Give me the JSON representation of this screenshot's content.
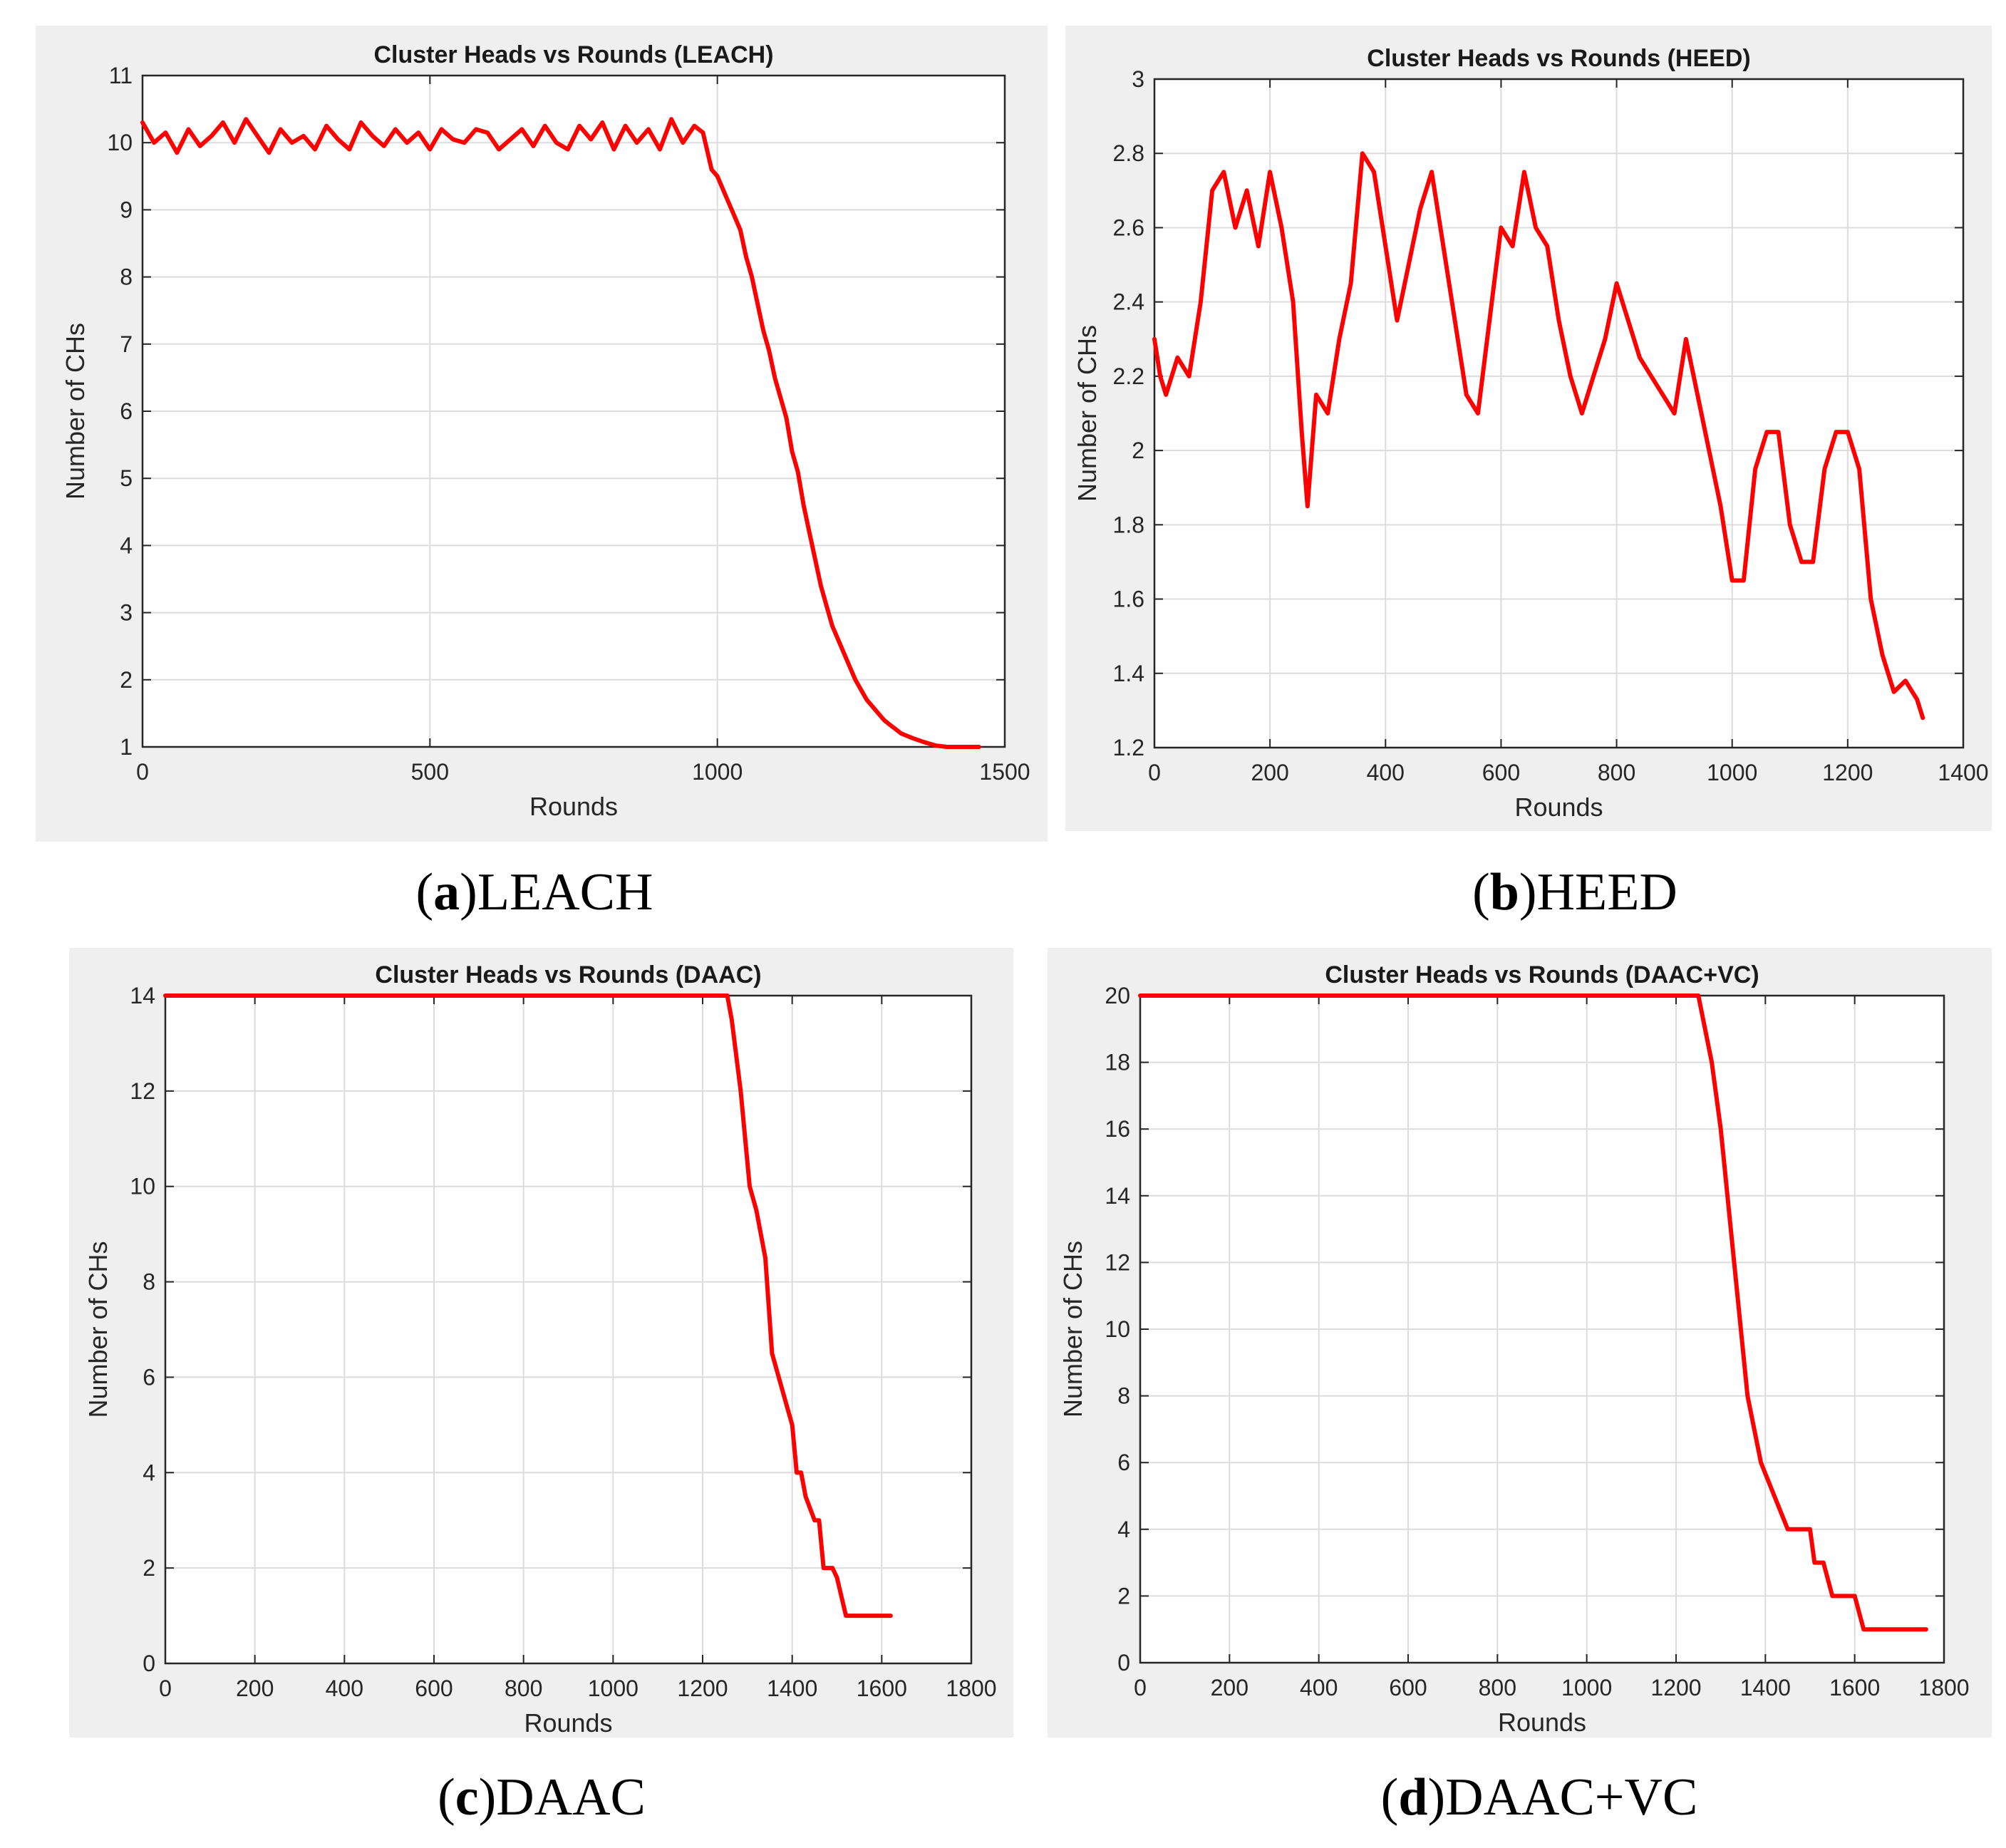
{
  "chart_data": [
    {
      "type": "line",
      "title": "Cluster Heads vs Rounds (LEACH)",
      "xlabel": "Rounds",
      "ylabel": "Number of CHs",
      "xlim": [
        0,
        1500
      ],
      "ylim": [
        1,
        11
      ],
      "xticks": [
        0,
        500,
        1000,
        1500
      ],
      "yticks": [
        1,
        2,
        3,
        4,
        5,
        6,
        7,
        8,
        9,
        10,
        11
      ],
      "grid": true,
      "series": [
        {
          "color": "#ff0000",
          "x": [
            0,
            20,
            40,
            60,
            80,
            100,
            120,
            140,
            160,
            180,
            200,
            220,
            240,
            260,
            280,
            300,
            320,
            340,
            360,
            380,
            400,
            420,
            440,
            460,
            480,
            500,
            520,
            540,
            560,
            580,
            600,
            620,
            640,
            660,
            680,
            700,
            720,
            740,
            760,
            780,
            800,
            820,
            840,
            860,
            880,
            900,
            920,
            940,
            960,
            975,
            990,
            1000,
            1010,
            1020,
            1030,
            1040,
            1050,
            1060,
            1070,
            1080,
            1090,
            1100,
            1110,
            1120,
            1130,
            1140,
            1150,
            1160,
            1170,
            1180,
            1190,
            1200,
            1210,
            1220,
            1230,
            1240,
            1250,
            1260,
            1270,
            1280,
            1290,
            1300,
            1320,
            1340,
            1360,
            1380,
            1400,
            1420,
            1440,
            1455
          ],
          "y": [
            10.3,
            10.0,
            10.15,
            9.85,
            10.2,
            9.95,
            10.1,
            10.3,
            10.0,
            10.35,
            10.1,
            9.85,
            10.2,
            10.0,
            10.1,
            9.9,
            10.25,
            10.05,
            9.9,
            10.3,
            10.1,
            9.95,
            10.2,
            10.0,
            10.15,
            9.9,
            10.2,
            10.05,
            10.0,
            10.2,
            10.15,
            9.9,
            10.05,
            10.2,
            9.95,
            10.25,
            10.0,
            9.9,
            10.25,
            10.05,
            10.3,
            9.9,
            10.25,
            10.0,
            10.2,
            9.9,
            10.35,
            10.0,
            10.25,
            10.15,
            9.6,
            9.5,
            9.3,
            9.1,
            8.9,
            8.7,
            8.3,
            8.0,
            7.6,
            7.2,
            6.9,
            6.5,
            6.2,
            5.9,
            5.4,
            5.1,
            4.6,
            4.2,
            3.8,
            3.4,
            3.1,
            2.8,
            2.6,
            2.4,
            2.2,
            2.0,
            1.85,
            1.7,
            1.6,
            1.5,
            1.4,
            1.33,
            1.2,
            1.13,
            1.07,
            1.02,
            1.0,
            1.0,
            1.0,
            1.0
          ]
        }
      ]
    },
    {
      "type": "line",
      "title": "Cluster Heads vs Rounds (HEED)",
      "xlabel": "Rounds",
      "ylabel": "Number of CHs",
      "xlim": [
        0,
        1400
      ],
      "ylim": [
        1.2,
        3
      ],
      "xticks": [
        0,
        200,
        400,
        600,
        800,
        1000,
        1200,
        1400
      ],
      "yticks": [
        1.2,
        1.4,
        1.6,
        1.8,
        2,
        2.2,
        2.4,
        2.6,
        2.8,
        3
      ],
      "grid": true,
      "series": [
        {
          "color": "#ff0000",
          "x": [
            0,
            10,
            20,
            40,
            60,
            80,
            100,
            120,
            140,
            160,
            180,
            200,
            220,
            240,
            255,
            265,
            280,
            300,
            320,
            340,
            360,
            380,
            400,
            420,
            440,
            460,
            480,
            500,
            520,
            540,
            560,
            580,
            600,
            620,
            640,
            660,
            680,
            700,
            720,
            740,
            760,
            780,
            800,
            820,
            840,
            860,
            880,
            900,
            920,
            940,
            960,
            980,
            1000,
            1020,
            1040,
            1060,
            1080,
            1100,
            1120,
            1140,
            1160,
            1180,
            1200,
            1220,
            1240,
            1260,
            1280,
            1300,
            1320,
            1330
          ],
          "y": [
            2.3,
            2.2,
            2.15,
            2.25,
            2.2,
            2.4,
            2.7,
            2.75,
            2.6,
            2.7,
            2.55,
            2.75,
            2.6,
            2.4,
            2.05,
            1.85,
            2.15,
            2.1,
            2.3,
            2.45,
            2.8,
            2.75,
            2.55,
            2.35,
            2.5,
            2.65,
            2.75,
            2.55,
            2.35,
            2.15,
            2.1,
            2.35,
            2.6,
            2.55,
            2.75,
            2.6,
            2.55,
            2.35,
            2.2,
            2.1,
            2.2,
            2.3,
            2.45,
            2.35,
            2.25,
            2.2,
            2.15,
            2.1,
            2.3,
            2.15,
            2.0,
            1.85,
            1.65,
            1.65,
            1.95,
            2.05,
            2.05,
            1.8,
            1.7,
            1.7,
            1.95,
            2.05,
            2.05,
            1.95,
            1.6,
            1.45,
            1.35,
            1.38,
            1.33,
            1.28
          ]
        }
      ]
    },
    {
      "type": "line",
      "title": "Cluster Heads vs Rounds (DAAC)",
      "xlabel": "Rounds",
      "ylabel": "Number of CHs",
      "xlim": [
        0,
        1800
      ],
      "ylim": [
        0,
        14
      ],
      "xticks": [
        0,
        200,
        400,
        600,
        800,
        1000,
        1200,
        1400,
        1600,
        1800
      ],
      "yticks": [
        0,
        2,
        4,
        6,
        8,
        10,
        12,
        14
      ],
      "grid": true,
      "series": [
        {
          "color": "#ff0000",
          "x": [
            0,
            1255,
            1265,
            1285,
            1305,
            1320,
            1340,
            1355,
            1370,
            1385,
            1400,
            1410,
            1420,
            1430,
            1450,
            1460,
            1470,
            1490,
            1500,
            1520,
            1620
          ],
          "y": [
            14,
            14,
            13.5,
            12,
            10,
            9.5,
            8.5,
            6.5,
            6,
            5.5,
            5,
            4,
            4,
            3.5,
            3,
            3,
            2,
            2,
            1.8,
            1,
            1
          ]
        }
      ]
    },
    {
      "type": "line",
      "title": "Cluster Heads vs Rounds (DAAC+VC)",
      "xlabel": "Rounds",
      "ylabel": "Number of CHs",
      "xlim": [
        0,
        1800
      ],
      "ylim": [
        0,
        20
      ],
      "xticks": [
        0,
        200,
        400,
        600,
        800,
        1000,
        1200,
        1400,
        1600,
        1800
      ],
      "yticks": [
        0,
        2,
        4,
        6,
        8,
        10,
        12,
        14,
        16,
        18,
        20
      ],
      "grid": true,
      "series": [
        {
          "color": "#ff0000",
          "x": [
            0,
            1250,
            1280,
            1300,
            1330,
            1360,
            1390,
            1420,
            1450,
            1470,
            1500,
            1510,
            1530,
            1550,
            1560,
            1600,
            1620,
            1640,
            1760
          ],
          "y": [
            20,
            20,
            18,
            16,
            12,
            8,
            6,
            5,
            4,
            4,
            4,
            3,
            3,
            2,
            2,
            2,
            1,
            1,
            1
          ]
        }
      ]
    }
  ],
  "captions": [
    {
      "letter": "a",
      "name": "LEACH"
    },
    {
      "letter": "b",
      "name": "HEED"
    },
    {
      "letter": "c",
      "name": "DAAC"
    },
    {
      "letter": "d",
      "name": "DAAC+VC"
    }
  ]
}
